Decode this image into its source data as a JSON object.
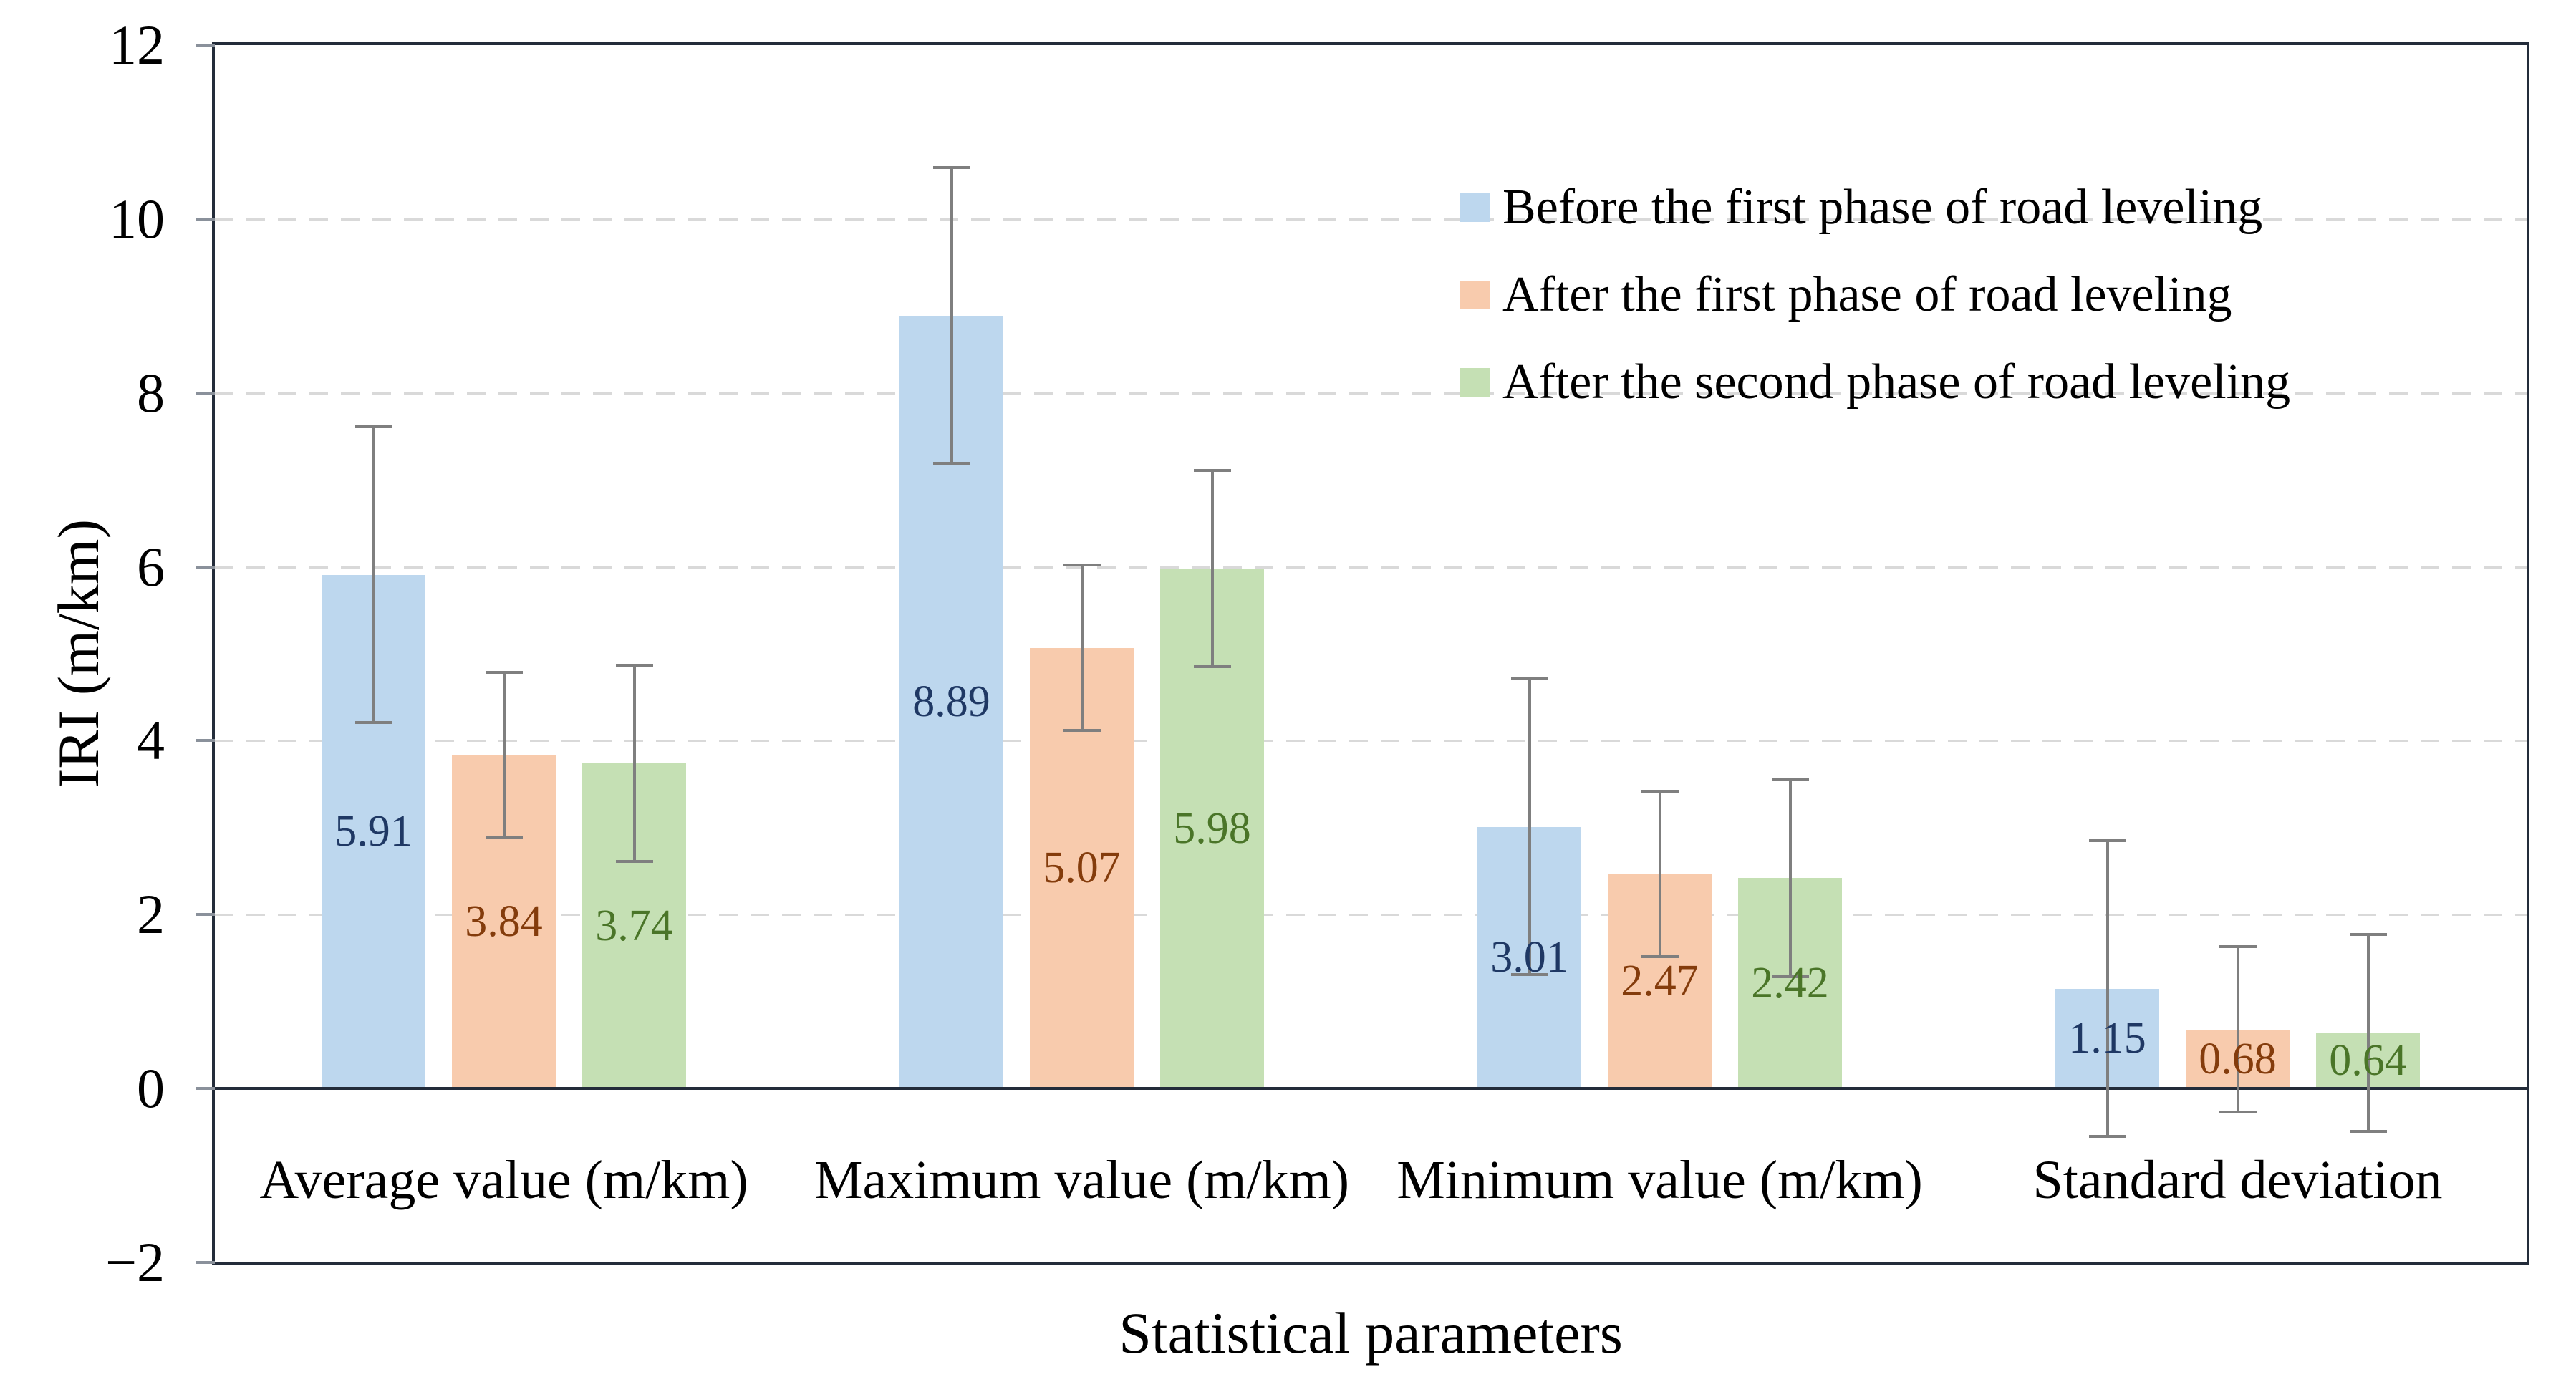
{
  "figure": {
    "background": "#ffffff",
    "frame_color": "#232c3a",
    "grid_color": "#d9d9d9",
    "tick_mark_color": "#8a919b",
    "error_bar_color": "#7f7f7f",
    "text_color": "#000000"
  },
  "chart_data": {
    "type": "bar",
    "title": "",
    "xlabel": "Statistical parameters",
    "ylabel": "IRI (m/km)",
    "ylim": [
      -2,
      12
    ],
    "ytick_values": [
      12,
      10,
      8,
      6,
      4,
      2,
      0,
      -2
    ],
    "ytick_labels": [
      "12",
      "10",
      "8",
      "6",
      "4",
      "2",
      "0",
      "−2"
    ],
    "gridlines_at": [
      10,
      8,
      6,
      4,
      2
    ],
    "grid": "horizontal dashed",
    "legend_position": "inside top-right",
    "categories": [
      "Average value (m/km)",
      "Maximum value (m/km)",
      "Minimum value (m/km)",
      "Standard deviation"
    ],
    "series": [
      {
        "name": "Before the first phase of road leveling",
        "color": "#bdd7ee",
        "label_color": "#1f3864",
        "values": [
          5.91,
          8.89,
          3.01,
          1.15
        ],
        "error_bar": 1.7
      },
      {
        "name": "After the first phase of road leveling",
        "color": "#f8cbad",
        "label_color": "#843c0c",
        "values": [
          3.84,
          5.07,
          2.47,
          0.68
        ],
        "error_bar": 0.95
      },
      {
        "name": "After the second phase of road leveling",
        "color": "#c5e0b4",
        "label_color": "#4a7528",
        "values": [
          3.74,
          5.98,
          2.42,
          0.64
        ],
        "error_bar": 1.13
      }
    ]
  }
}
